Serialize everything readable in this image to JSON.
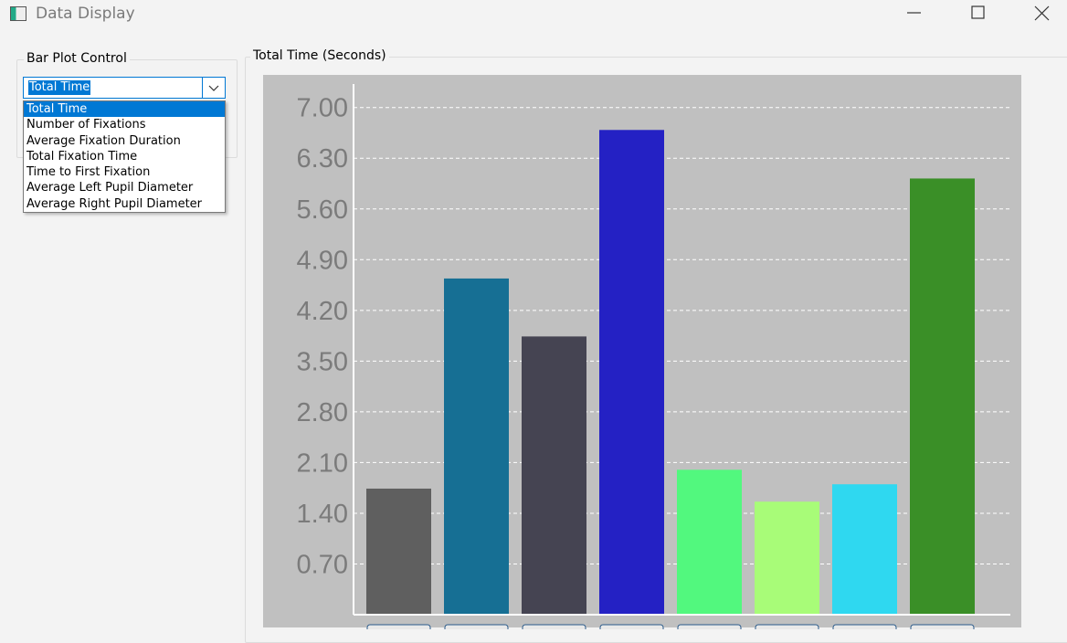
{
  "window": {
    "title": "Data Display"
  },
  "control_panel": {
    "title": "Bar Plot Control",
    "selected": "Total Time",
    "options": [
      "Total Time",
      "Number of Fixations",
      "Average Fixation Duration",
      "Total Fixation Time",
      "Time to First Fixation",
      "Average Left Pupil Diameter",
      "Average Right Pupil Diameter"
    ]
  },
  "chart_data": {
    "type": "bar",
    "title": "Total Time (Seconds)",
    "categories": [
      null,
      null,
      null,
      null,
      null,
      null,
      null,
      null
    ],
    "series": [
      {
        "values": [
          1.74,
          4.64,
          3.84,
          6.69,
          2.0,
          1.56,
          1.8,
          6.02
        ],
        "colors": [
          "#5f5f5f",
          "#166f94",
          "#454452",
          "#2421c4",
          "#52f87e",
          "#a8fc78",
          "#2fd8f0",
          "#3a8f27"
        ]
      }
    ],
    "ylim": [
      0,
      7.45
    ],
    "yticks": [
      {
        "value": 0.7,
        "label": "0.70"
      },
      {
        "value": 1.4,
        "label": "1.40"
      },
      {
        "value": 2.1,
        "label": "2.10"
      },
      {
        "value": 2.8,
        "label": "2.80"
      },
      {
        "value": 3.5,
        "label": "3.50"
      },
      {
        "value": 4.2,
        "label": "4.20"
      },
      {
        "value": 4.9,
        "label": "4.90"
      },
      {
        "value": 5.6,
        "label": "5.60"
      },
      {
        "value": 6.3,
        "label": "6.30"
      },
      {
        "value": 7.0,
        "label": "7.00"
      }
    ],
    "grid": true
  }
}
